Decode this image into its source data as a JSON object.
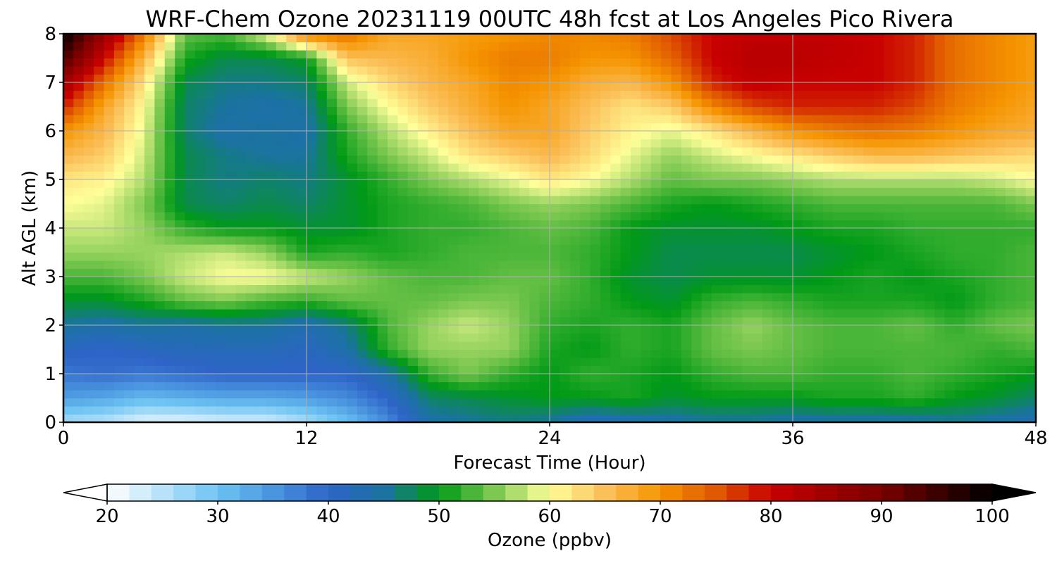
{
  "chart_data": {
    "type": "heatmap",
    "title": "WRF-Chem Ozone  20231119 00UTC 48h fcst at Los Angeles Pico Rivera",
    "xlabel": "Forecast Time (Hour)",
    "ylabel": "Alt AGL (km)",
    "xlim": [
      0,
      48
    ],
    "ylim": [
      0,
      8
    ],
    "xticks": [
      0,
      12,
      24,
      36,
      48
    ],
    "yticks": [
      0,
      1,
      2,
      3,
      4,
      5,
      6,
      7,
      8
    ],
    "grid": true,
    "x": [
      0,
      2,
      4,
      6,
      8,
      10,
      12,
      14,
      16,
      18,
      20,
      22,
      24,
      26,
      28,
      30,
      32,
      34,
      36,
      38,
      40,
      42,
      44,
      46,
      48
    ],
    "y": [
      0,
      0.5,
      1,
      1.5,
      2,
      2.5,
      3,
      3.5,
      4,
      4.5,
      5,
      5.5,
      6,
      6.5,
      7,
      7.5,
      8
    ],
    "z": [
      [
        26,
        25,
        22,
        22,
        23,
        23,
        26,
        30,
        36,
        44,
        45,
        46,
        45,
        42,
        43,
        44,
        45,
        45,
        44,
        44,
        44,
        44,
        45,
        44,
        43
      ],
      [
        34,
        33,
        31,
        32,
        33,
        33,
        34,
        36,
        40,
        47,
        48,
        49,
        50,
        50,
        51,
        49,
        50,
        50,
        50,
        51,
        51,
        52,
        50,
        49,
        47
      ],
      [
        38,
        39,
        38,
        39,
        40,
        40,
        40,
        40,
        44,
        52,
        55,
        52,
        50,
        52,
        51,
        50,
        52,
        53,
        53,
        52,
        52,
        53,
        52,
        51,
        50
      ],
      [
        41,
        40,
        41,
        42,
        42,
        42,
        41,
        44,
        52,
        56,
        56,
        56,
        51,
        50,
        52,
        51,
        54,
        55,
        54,
        53,
        53,
        53,
        53,
        52,
        53
      ],
      [
        45,
        44,
        45,
        44,
        45,
        45,
        43,
        46,
        53,
        56,
        58,
        56,
        52,
        51,
        52,
        51,
        54,
        56,
        54,
        53,
        53,
        54,
        52,
        54,
        55
      ],
      [
        49,
        49,
        51,
        54,
        55,
        53,
        52,
        54,
        54,
        54,
        55,
        55,
        53,
        52,
        50,
        49,
        52,
        53,
        52,
        51,
        51,
        51,
        50,
        52,
        53
      ],
      [
        53,
        53,
        55,
        58,
        60,
        60,
        58,
        56,
        54,
        53,
        53,
        54,
        54,
        52,
        49,
        48,
        49,
        49,
        49,
        50,
        51,
        50,
        51,
        52,
        53
      ],
      [
        56,
        56,
        56,
        57,
        58,
        56,
        51,
        52,
        51,
        52,
        53,
        53,
        53,
        52,
        50,
        48,
        48,
        48,
        48,
        49,
        50,
        51,
        52,
        52,
        53
      ],
      [
        58,
        58,
        56,
        52,
        50,
        50,
        49,
        49,
        51,
        52,
        52,
        53,
        54,
        53,
        50,
        49,
        49,
        49,
        50,
        51,
        51,
        52,
        52,
        52,
        52
      ],
      [
        60,
        59,
        55,
        48,
        47,
        48,
        47,
        49,
        51,
        52,
        53,
        55,
        56,
        55,
        53,
        51,
        50,
        51,
        52,
        53,
        53,
        53,
        53,
        53,
        55
      ],
      [
        62,
        61,
        57,
        48,
        46,
        47,
        46,
        49,
        52,
        55,
        57,
        59,
        62,
        60,
        57,
        54,
        55,
        55,
        56,
        57,
        57,
        57,
        57,
        58,
        60
      ],
      [
        66,
        64,
        58,
        48,
        46,
        45,
        45,
        51,
        55,
        58,
        62,
        64,
        66,
        63,
        59,
        56,
        58,
        60,
        62,
        64,
        66,
        66,
        65,
        64,
        63
      ],
      [
        70,
        66,
        59,
        47,
        44,
        45,
        44,
        52,
        57,
        61,
        65,
        68,
        68,
        64,
        61,
        59,
        62,
        66,
        70,
        72,
        73,
        72,
        70,
        68,
        67
      ],
      [
        78,
        68,
        60,
        47,
        45,
        44,
        45,
        55,
        60,
        64,
        67,
        70,
        68,
        65,
        62,
        64,
        71,
        76,
        78,
        78,
        78,
        76,
        72,
        70,
        68
      ],
      [
        85,
        73,
        62,
        48,
        46,
        46,
        47,
        58,
        63,
        66,
        68,
        71,
        70,
        67,
        66,
        70,
        78,
        81,
        80,
        80,
        80,
        78,
        73,
        71,
        69
      ],
      [
        94,
        80,
        66,
        51,
        48,
        48,
        50,
        65,
        66,
        67,
        70,
        72,
        72,
        70,
        70,
        74,
        80,
        82,
        82,
        81,
        80,
        78,
        73,
        71,
        69
      ],
      [
        100,
        86,
        72,
        54,
        53,
        59,
        72,
        73,
        68,
        68,
        69,
        70,
        71,
        71,
        72,
        76,
        80,
        81,
        81,
        81,
        80,
        78,
        73,
        71,
        69
      ]
    ],
    "colorbar": {
      "label": "Ozone  (ppbv)",
      "vmin": 20,
      "vmax": 100,
      "ticks": [
        20,
        30,
        40,
        50,
        60,
        70,
        80,
        90,
        100
      ],
      "extend": "both",
      "stops": [
        [
          20,
          "#ffffff"
        ],
        [
          25,
          "#b8e2fa"
        ],
        [
          30,
          "#6cc3f2"
        ],
        [
          35,
          "#4a95df"
        ],
        [
          40,
          "#2e64c8"
        ],
        [
          45,
          "#1a73a0"
        ],
        [
          50,
          "#009a16"
        ],
        [
          55,
          "#7cc850"
        ],
        [
          60,
          "#ffff9a"
        ],
        [
          65,
          "#fbc05a"
        ],
        [
          70,
          "#f59400"
        ],
        [
          75,
          "#e05800"
        ],
        [
          80,
          "#c80000"
        ],
        [
          90,
          "#7a0000"
        ],
        [
          100,
          "#000000"
        ]
      ],
      "under_color": "#ffffff",
      "over_color": "#000000"
    }
  }
}
